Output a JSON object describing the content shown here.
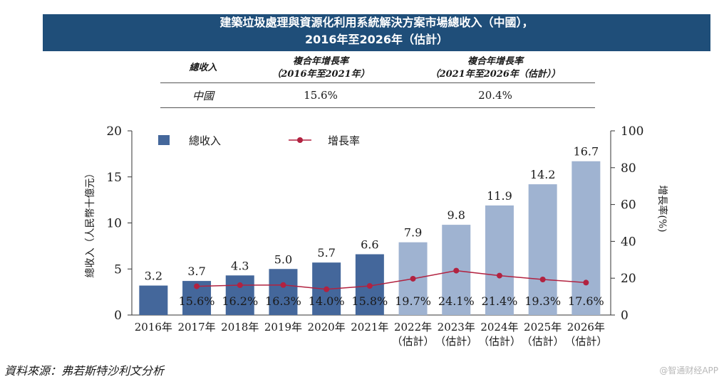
{
  "header": {
    "title_line1": "建築垃圾處理與資源化利用系統解決方案市場總收入（中國），",
    "title_line2": "2016年至2026年（估計）"
  },
  "cagr_table": {
    "col1": "總收入",
    "col2_line1": "複合年增長率",
    "col2_line2": "（2016年至2021年）",
    "col3_line1": "複合年增長率",
    "col3_line2": "（2021年至2026年（估計））",
    "row_label": "中國",
    "row_value1": "15.6%",
    "row_value2": "20.4%"
  },
  "chart_data": {
    "type": "bar",
    "title": "",
    "ylabel": "總收入（人民幣十億元）",
    "y2label": "增長率(%)",
    "ylim": [
      0,
      20
    ],
    "y2lim": [
      0,
      100
    ],
    "yticks": [
      "0",
      "5",
      "10",
      "15",
      "20"
    ],
    "y2ticks": [
      "0",
      "20",
      "40",
      "60",
      "80",
      "100"
    ],
    "categories": [
      [
        "2016年"
      ],
      [
        "2017年"
      ],
      [
        "2018年"
      ],
      [
        "2019年"
      ],
      [
        "2020年"
      ],
      [
        "2021年"
      ],
      [
        "2022年",
        "（估計）"
      ],
      [
        "2023年",
        "（估計）"
      ],
      [
        "2024年",
        "（估計）"
      ],
      [
        "2025年",
        "（估計）"
      ],
      [
        "2026年",
        "（估計）"
      ]
    ],
    "series": [
      {
        "name": "總收入",
        "kind": "bar",
        "values": [
          3.2,
          3.7,
          4.3,
          5.0,
          5.7,
          6.6,
          7.9,
          9.8,
          11.9,
          14.2,
          16.7
        ],
        "labels": [
          "3.2",
          "3.7",
          "4.3",
          "5.0",
          "5.7",
          "6.6",
          "7.9",
          "9.8",
          "11.9",
          "14.2",
          "16.7"
        ]
      },
      {
        "name": "增長率",
        "kind": "line",
        "values": [
          null,
          15.6,
          16.2,
          16.3,
          14.0,
          15.8,
          19.7,
          24.1,
          21.4,
          19.3,
          17.6
        ],
        "labels": [
          "",
          "15.6%",
          "16.2%",
          "16.3%",
          "14.0%",
          "15.8%",
          "19.7%",
          "24.1%",
          "21.4%",
          "19.3%",
          "17.6%"
        ]
      }
    ],
    "colors": {
      "actual": "#44679b",
      "estimate": "#9fb3d1",
      "line": "#b22240"
    },
    "estimate_from_index": 6,
    "legend": "top-left"
  },
  "footer": {
    "source": "資料來源：弗若斯特沙利文分析",
    "watermark": "@智通财经APP"
  }
}
